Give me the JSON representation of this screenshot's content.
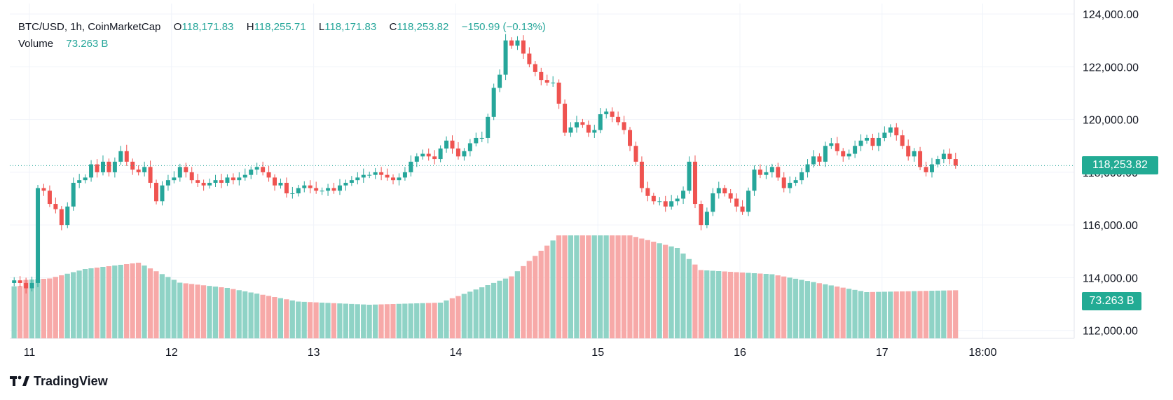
{
  "legend": {
    "symbol": "BTC/USD, 1h, CoinMarketCap",
    "open_label": "O",
    "open": "118,171.83",
    "high_label": "H",
    "high": "118,255.71",
    "low_label": "L",
    "low": "118,171.83",
    "close_label": "C",
    "close": "118,253.82",
    "change": "−150.99 (−0.13%)",
    "volume_label": "Volume",
    "volume": "73.263 B"
  },
  "badges": {
    "price": "118,253.82",
    "volume": "73.263 B"
  },
  "brand": {
    "name": "TradingView"
  },
  "colors": {
    "up": "#26a69a",
    "down": "#ef5350",
    "up_volume": "#8fd3c6",
    "down_volume": "#f7a9a8",
    "grid": "#f0f3fa",
    "badge": "#22ab94"
  },
  "chart_data": {
    "type": "candlestick",
    "interval": "1h",
    "y_axis": {
      "ticks": [
        "124,000.00",
        "122,000.00",
        "120,000.00",
        "118,000.00",
        "116,000.00",
        "114,000.00",
        "112,000.00"
      ],
      "tick_values": [
        124000,
        122000,
        120000,
        118000,
        116000,
        114000,
        112000
      ],
      "range": [
        111700,
        124400
      ]
    },
    "x_axis": {
      "ticks": [
        "11",
        "12",
        "13",
        "14",
        "15",
        "16",
        "17",
        "18:00"
      ],
      "tick_positions": [
        0,
        24,
        48,
        72,
        96,
        120,
        144,
        161
      ]
    },
    "last_price": 118253.82,
    "last_volume": "73.263 B",
    "candles_close_approx": [
      113900,
      113800,
      113600,
      113800,
      117400,
      117300,
      116800,
      116600,
      116000,
      116700,
      117600,
      117700,
      117800,
      118300,
      118000,
      118400,
      118000,
      118400,
      118800,
      118400,
      118100,
      118000,
      118200,
      117600,
      116900,
      117500,
      117700,
      117800,
      118200,
      118000,
      117700,
      117600,
      117500,
      117600,
      117700,
      117600,
      117800,
      117700,
      117800,
      117900,
      118100,
      118200,
      118000,
      117800,
      117500,
      117600,
      117200,
      117200,
      117400,
      117500,
      117400,
      117300,
      117300,
      117400,
      117300,
      117500,
      117600,
      117700,
      117800,
      117900,
      117900,
      118000,
      117900,
      117800,
      117700,
      117800,
      118000,
      118400,
      118600,
      118700,
      118600,
      118500,
      118900,
      119200,
      118900,
      118600,
      118800,
      119100,
      119300,
      119300,
      120100,
      121200,
      121700,
      123000,
      122800,
      123000,
      122500,
      122100,
      121800,
      121500,
      121400,
      121400,
      120600,
      119500,
      119700,
      119900,
      119800,
      119500,
      119600,
      120200,
      120300,
      120100,
      119900,
      119600,
      119000,
      118400,
      117400,
      117100,
      116900,
      116900,
      116700,
      116900,
      117000,
      117300,
      118400,
      116800,
      116000,
      116500,
      117200,
      117400,
      117200,
      117000,
      116700,
      116500,
      117300,
      118100,
      117900,
      118000,
      118200,
      117800,
      117400,
      117600,
      117700,
      118000,
      118300,
      118600,
      118400,
      119000,
      119100,
      118800,
      118600,
      118700,
      119000,
      119200,
      119300,
      119000,
      119300,
      119500,
      119700,
      119400,
      119000,
      118600,
      118800,
      118200,
      118000,
      118300,
      118500,
      118700,
      118500,
      118254
    ]
  }
}
